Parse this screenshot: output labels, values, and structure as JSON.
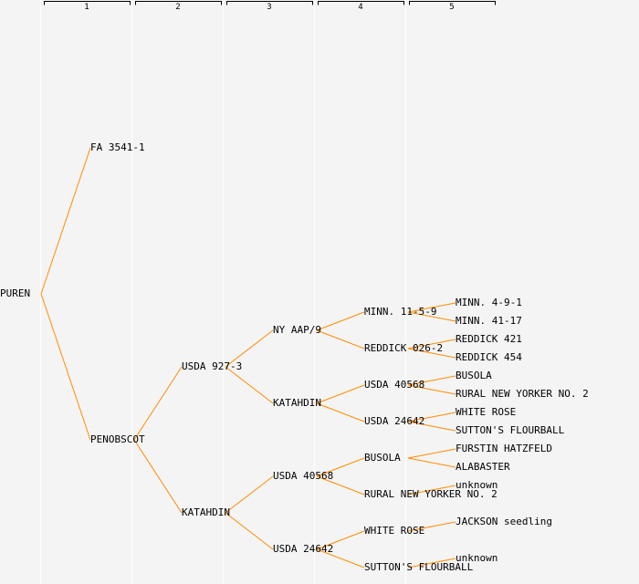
{
  "generation_headers": [
    "1",
    "2",
    "3",
    "4",
    "5"
  ],
  "colors": {
    "line": "#ff8c00",
    "text": "#000000",
    "highlight": "#0000ff",
    "background": "#f4f4f4",
    "separator": "#ffffff"
  },
  "tree": {
    "name": "PUREN",
    "parents": [
      {
        "name": "FA 3541-1",
        "parents": []
      },
      {
        "name": "PENOBSCOT",
        "parents": [
          {
            "name": "USDA 927-3",
            "parents": [
              {
                "name": "NY AAP/9",
                "parents": [
                  {
                    "name": "MINN. 11-5-9",
                    "parents": [
                      {
                        "name": "MINN. 4-9-1"
                      },
                      {
                        "name": "MINN. 41-17"
                      }
                    ]
                  },
                  {
                    "name": "REDDICK 026-2",
                    "parents": [
                      {
                        "name": "REDDICK 421"
                      },
                      {
                        "name": "REDDICK 454"
                      }
                    ]
                  }
                ]
              },
              {
                "name": "KATAHDIN",
                "parents": [
                  {
                    "name": "USDA 40568",
                    "parents": [
                      {
                        "name": "BUSOLA"
                      },
                      {
                        "name": "RURAL NEW YORKER NO. 2"
                      }
                    ]
                  },
                  {
                    "name": "USDA 24642",
                    "parents": [
                      {
                        "name": "WHITE ROSE"
                      },
                      {
                        "name": "SUTTON'S FLOURBALL"
                      }
                    ]
                  }
                ]
              }
            ]
          },
          {
            "name": "KATAHDIN",
            "parents": [
              {
                "name": "USDA 40568",
                "parents": [
                  {
                    "name": "BUSOLA",
                    "parents": [
                      {
                        "name": "FURSTIN HATZFELD"
                      },
                      {
                        "name": "ALABASTER"
                      }
                    ]
                  },
                  {
                    "name": "RURAL NEW YORKER NO. 2",
                    "parents": [
                      {
                        "name": "unknown"
                      }
                    ]
                  }
                ]
              },
              {
                "name": "USDA 24642",
                "parents": [
                  {
                    "name": "WHITE ROSE",
                    "highlight": true,
                    "parents": [
                      {
                        "name": "JACKSON seedling"
                      }
                    ]
                  },
                  {
                    "name": "SUTTON'S FLOURBALL",
                    "parents": [
                      {
                        "name": "unknown"
                      }
                    ]
                  }
                ]
              }
            ]
          }
        ]
      }
    ]
  }
}
